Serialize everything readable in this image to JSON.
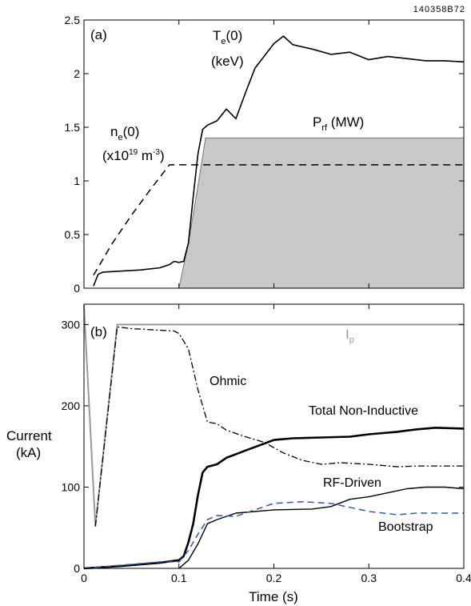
{
  "figure_code": "140358B72",
  "chart_data": [
    {
      "type": "line",
      "panel_label": "(a)",
      "xlim": [
        0,
        0.4
      ],
      "ylim": [
        0,
        2.5
      ],
      "y_ticks": [
        "0",
        "0.5",
        "1",
        "1.5",
        "2",
        "2.5"
      ],
      "series": [
        {
          "name": "Te(0) (keV)",
          "style": "solid",
          "color": "#000000",
          "x": [
            0.01,
            0.015,
            0.02,
            0.04,
            0.06,
            0.08,
            0.09,
            0.095,
            0.1,
            0.105,
            0.11,
            0.115,
            0.12,
            0.125,
            0.13,
            0.14,
            0.15,
            0.16,
            0.17,
            0.18,
            0.2,
            0.21,
            0.22,
            0.24,
            0.26,
            0.28,
            0.3,
            0.32,
            0.34,
            0.36,
            0.38,
            0.4
          ],
          "y": [
            0.02,
            0.13,
            0.15,
            0.16,
            0.17,
            0.19,
            0.22,
            0.25,
            0.24,
            0.25,
            0.42,
            0.85,
            1.25,
            1.48,
            1.52,
            1.56,
            1.67,
            1.58,
            1.82,
            2.05,
            2.28,
            2.35,
            2.27,
            2.23,
            2.18,
            2.2,
            2.13,
            2.16,
            2.14,
            2.12,
            2.12,
            2.11
          ]
        },
        {
          "name": "ne(0) (x10^19 m^-3)",
          "style": "dashed",
          "color": "#000000",
          "x": [
            0.01,
            0.03,
            0.05,
            0.07,
            0.09,
            0.1,
            0.12,
            0.4
          ],
          "y": [
            0.12,
            0.42,
            0.68,
            0.92,
            1.15,
            1.15,
            1.15,
            1.15
          ]
        },
        {
          "name": "Prf (MW)",
          "style": "filled",
          "color": "#c8c8c8",
          "x": [
            0.1,
            0.11,
            0.12,
            0.128,
            0.4
          ],
          "y": [
            0.0,
            0.42,
            0.95,
            1.4,
            1.4
          ]
        }
      ],
      "annotations": [
        {
          "text": "T",
          "sub": "e",
          "after": "(0)",
          "line2": "(keV)"
        },
        {
          "text": "n",
          "sub": "e",
          "after": "(0)",
          "line2_pre": "(x10",
          "line2_sup": "19",
          "line2_mid": " m",
          "line2_sup2": "-3",
          "line2_post": ")"
        },
        {
          "text": "P",
          "sub": "rf",
          "after": " (MW)"
        }
      ]
    },
    {
      "type": "line",
      "panel_label": "(b)",
      "ylabel_line1": "Current",
      "ylabel_line2": "(kA)",
      "xlabel": "Time (s)",
      "xlim": [
        0,
        0.4
      ],
      "ylim": [
        0,
        325
      ],
      "x_ticks": [
        "0",
        "0.1",
        "0.2",
        "0.3",
        "0.4"
      ],
      "y_ticks": [
        "0",
        "100",
        "200",
        "300"
      ],
      "series": [
        {
          "name": "Ip",
          "style": "solid",
          "color": "#999999",
          "x": [
            0.0,
            0.001,
            0.012,
            0.035,
            0.04,
            0.4
          ],
          "y": [
            324,
            300,
            52,
            300,
            300,
            300
          ]
        },
        {
          "name": "Ohmic",
          "style": "dashdot",
          "color": "#000000",
          "x": [
            0.012,
            0.035,
            0.05,
            0.08,
            0.095,
            0.1,
            0.11,
            0.12,
            0.13,
            0.14,
            0.15,
            0.17,
            0.19,
            0.21,
            0.23,
            0.25,
            0.27,
            0.3,
            0.33,
            0.35,
            0.37,
            0.4
          ],
          "y": [
            52,
            297,
            295,
            293,
            292,
            289,
            270,
            220,
            180,
            178,
            170,
            162,
            155,
            142,
            133,
            128,
            130,
            128,
            125,
            126,
            126,
            126
          ]
        },
        {
          "name": "Total Non-Inductive",
          "style": "solid-thick",
          "color": "#000000",
          "x": [
            0.0,
            0.04,
            0.08,
            0.1,
            0.105,
            0.11,
            0.115,
            0.12,
            0.125,
            0.13,
            0.14,
            0.15,
            0.17,
            0.2,
            0.22,
            0.25,
            0.28,
            0.3,
            0.33,
            0.35,
            0.37,
            0.4
          ],
          "y": [
            0,
            3,
            7,
            10,
            15,
            32,
            55,
            90,
            118,
            125,
            128,
            136,
            145,
            158,
            160,
            161,
            162,
            165,
            168,
            171,
            173,
            172
          ]
        },
        {
          "name": "RF-Driven",
          "style": "solid",
          "color": "#000000",
          "x": [
            0.1,
            0.11,
            0.12,
            0.13,
            0.14,
            0.16,
            0.2,
            0.24,
            0.26,
            0.28,
            0.3,
            0.32,
            0.34,
            0.36,
            0.38,
            0.4
          ],
          "y": [
            0,
            10,
            30,
            55,
            60,
            68,
            72,
            73,
            76,
            85,
            88,
            93,
            98,
            100,
            100,
            98
          ]
        },
        {
          "name": "Bootstrap",
          "style": "dashed",
          "color": "#2f5aa8",
          "x": [
            0.0,
            0.04,
            0.08,
            0.1,
            0.11,
            0.12,
            0.13,
            0.14,
            0.16,
            0.2,
            0.23,
            0.26,
            0.28,
            0.3,
            0.33,
            0.35,
            0.4
          ],
          "y": [
            0,
            4,
            8,
            8,
            22,
            42,
            60,
            65,
            64,
            80,
            82,
            80,
            75,
            70,
            66,
            68,
            68
          ]
        }
      ],
      "annotations": [
        {
          "text": "I",
          "sub": "p"
        },
        {
          "text": "Ohmic"
        },
        {
          "text": "Total Non-Inductive"
        },
        {
          "text": "RF-Driven"
        },
        {
          "text": "Bootstrap"
        }
      ]
    }
  ]
}
